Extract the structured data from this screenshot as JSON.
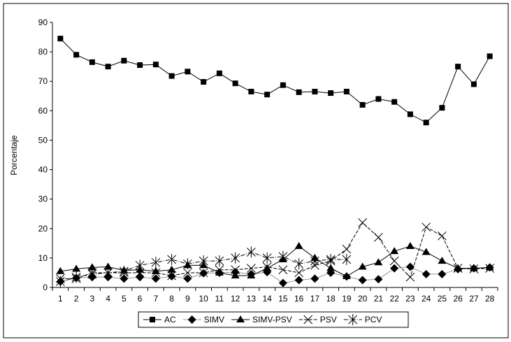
{
  "chart_data": {
    "type": "line",
    "title": "",
    "xlabel": "",
    "ylabel": "Porcentaje",
    "ylim": [
      0,
      90
    ],
    "yticks": [
      0,
      10,
      20,
      30,
      40,
      50,
      60,
      70,
      80,
      90
    ],
    "x": [
      1,
      2,
      3,
      4,
      5,
      6,
      7,
      8,
      9,
      10,
      11,
      12,
      13,
      14,
      15,
      16,
      17,
      18,
      19,
      20,
      21,
      22,
      23,
      24,
      25,
      26,
      27,
      28
    ],
    "legend_position": "bottom",
    "series": [
      {
        "name": "AC",
        "marker": "square",
        "values": [
          84.5,
          79,
          76.5,
          75,
          77,
          75.5,
          75.7,
          71.8,
          73.3,
          69.8,
          72.7,
          69.3,
          66.5,
          65.5,
          68.7,
          66.3,
          66.5,
          66,
          66.5,
          62,
          64,
          63,
          58.8,
          56,
          61,
          75,
          69,
          78.5
        ]
      },
      {
        "name": "SIMV",
        "marker": "diamond",
        "values": [
          2,
          3.2,
          3.5,
          3.5,
          3,
          3.5,
          3,
          3.8,
          3,
          4.8,
          5,
          5.2,
          4.5,
          5.2,
          1.5,
          2.5,
          3,
          5,
          3.7,
          2.5,
          2.8,
          6.5,
          7,
          4.5,
          4.5,
          6.2,
          6.5,
          6.8
        ]
      },
      {
        "name": "SIMV-PSV",
        "marker": "triangle",
        "values": [
          5.5,
          6.3,
          6.8,
          7,
          5.8,
          6,
          5.5,
          6,
          7.5,
          7.5,
          5,
          4,
          4,
          6.5,
          9.5,
          14,
          10,
          6.5,
          3.8,
          7,
          8.5,
          12.3,
          14,
          12,
          9,
          6.5,
          6.5,
          6.8
        ]
      },
      {
        "name": "PSV",
        "marker": "x",
        "values": [
          3,
          3,
          5,
          5,
          5,
          5,
          5,
          4,
          5,
          5,
          6,
          6,
          6.5,
          7,
          6,
          5,
          7.5,
          9,
          13,
          22,
          17,
          9,
          3.5,
          20.5,
          17.5,
          6.5,
          6.3,
          6.5
        ]
      },
      {
        "name": "PCV",
        "marker": "star",
        "values": [
          2,
          3.5,
          4.5,
          5,
          5.5,
          7.5,
          8.5,
          9.5,
          8,
          9,
          9,
          10,
          12,
          10,
          10.5,
          8,
          9,
          9.5,
          9.5,
          null,
          null,
          null,
          null,
          null,
          null,
          null,
          null,
          null
        ]
      }
    ]
  }
}
